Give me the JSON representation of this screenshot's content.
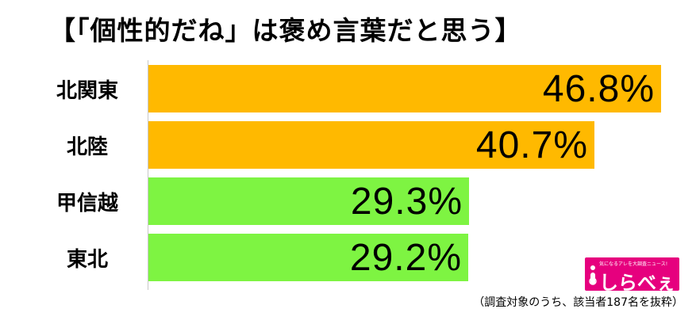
{
  "title": "【「個性的だね」は褒め言葉だと思う】",
  "chart_data": {
    "type": "bar",
    "orientation": "horizontal",
    "categories": [
      "北関東",
      "北陸",
      "甲信越",
      "東北"
    ],
    "values": [
      46.8,
      40.7,
      29.3,
      29.2
    ],
    "value_labels": [
      "46.8%",
      "40.7%",
      "29.3%",
      "29.2%"
    ],
    "bar_colors": [
      "#ffb900",
      "#ffb900",
      "#7ef442",
      "#7ef442"
    ],
    "title": "【「個性的だね」は褒め言葉だと思う】",
    "xlabel": "",
    "ylabel": "",
    "xlim": [
      0,
      55
    ],
    "grid": false,
    "legend": "none"
  },
  "logo": {
    "tagline": "気になるアレを大調査ニュース!",
    "text": "しらべぇ",
    "icon": "magnifier-i-icon",
    "color": "#e6007e"
  },
  "footnote": "（調査対象のうち、該当者187名を抜粋）"
}
